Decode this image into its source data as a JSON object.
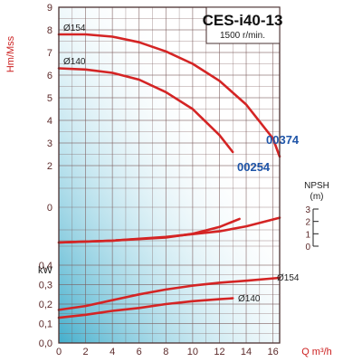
{
  "chart_data": {
    "type": "line",
    "title": "CES-i40-13",
    "subtitle": "1500 r/min.",
    "colors": {
      "curve": "#d42424",
      "grid": "#7a5a5a",
      "frame": "#4a3030",
      "axis_title": "#cc1f1f",
      "curve_code": "#1f55a8",
      "gradient_start": "#2fa5c6",
      "gradient_end": "#ffffff"
    },
    "x_axis": {
      "label": "Q m³/h",
      "ticks": [
        "0",
        "2",
        "4",
        "6",
        "8",
        "10",
        "12",
        "14",
        "16"
      ],
      "range": [
        0,
        16.5
      ]
    },
    "head_panel": {
      "ylabel": "Hm/Mss",
      "ticks": [
        "2",
        "3",
        "4",
        "5",
        "6",
        "7",
        "8",
        "9"
      ],
      "range": [
        2,
        9
      ],
      "series": [
        {
          "name": "Ø154",
          "code": "00374",
          "points": [
            [
              0,
              7.8
            ],
            [
              2,
              7.8
            ],
            [
              4,
              7.7
            ],
            [
              6,
              7.45
            ],
            [
              8,
              7.05
            ],
            [
              10,
              6.5
            ],
            [
              12,
              5.75
            ],
            [
              14,
              4.7
            ],
            [
              16,
              3.2
            ],
            [
              16.5,
              2.4
            ]
          ]
        },
        {
          "name": "Ø140",
          "code": "00254",
          "points": [
            [
              0,
              6.3
            ],
            [
              2,
              6.25
            ],
            [
              4,
              6.1
            ],
            [
              6,
              5.8
            ],
            [
              8,
              5.25
            ],
            [
              10,
              4.5
            ],
            [
              12,
              3.35
            ],
            [
              13,
              2.6
            ]
          ]
        }
      ],
      "labels": [
        "Ø154",
        "Ø140",
        "00374",
        "00254"
      ]
    },
    "mid_panel": {
      "ticks": [
        "0"
      ],
      "npsh_label": "NPSH",
      "npsh_unit": "(m)",
      "npsh_ticks": [
        "3",
        "2",
        "1",
        "0"
      ],
      "npsh_range": [
        0,
        3
      ],
      "series": [
        {
          "name": "Ø154",
          "points": [
            [
              0,
              0.3
            ],
            [
              4,
              0.45
            ],
            [
              8,
              0.75
            ],
            [
              12,
              1.2
            ],
            [
              14,
              1.6
            ],
            [
              16.5,
              2.3
            ]
          ]
        },
        {
          "name": "Ø140",
          "points": [
            [
              0,
              0.3
            ],
            [
              4,
              0.45
            ],
            [
              8,
              0.7
            ],
            [
              10,
              1.0
            ],
            [
              12,
              1.55
            ],
            [
              13.5,
              2.2
            ]
          ]
        }
      ]
    },
    "power_panel": {
      "ylabel": "kW",
      "ticks": [
        "0,0",
        "0,1",
        "0,2",
        "0,3",
        "0,4"
      ],
      "range": [
        0,
        0.4
      ],
      "series": [
        {
          "name": "Ø154",
          "points": [
            [
              0,
              0.17
            ],
            [
              2,
              0.19
            ],
            [
              4,
              0.22
            ],
            [
              6,
              0.25
            ],
            [
              8,
              0.275
            ],
            [
              10,
              0.295
            ],
            [
              12,
              0.31
            ],
            [
              14,
              0.32
            ],
            [
              16.5,
              0.335
            ]
          ]
        },
        {
          "name": "Ø140",
          "points": [
            [
              0,
              0.13
            ],
            [
              2,
              0.145
            ],
            [
              4,
              0.165
            ],
            [
              6,
              0.18
            ],
            [
              8,
              0.2
            ],
            [
              10,
              0.215
            ],
            [
              12,
              0.225
            ],
            [
              13,
              0.23
            ]
          ]
        }
      ],
      "labels": [
        "Ø154",
        "Ø140"
      ]
    }
  }
}
